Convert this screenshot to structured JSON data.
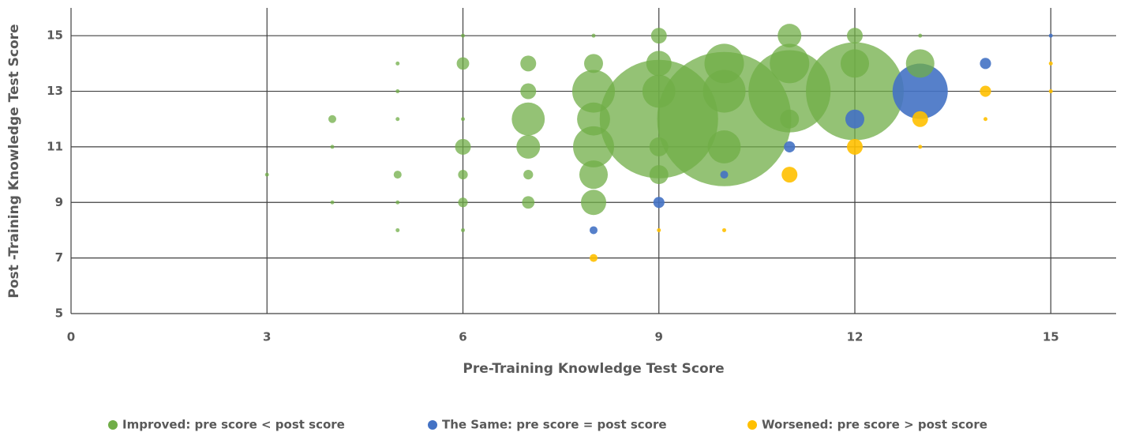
{
  "chart_data": {
    "type": "bubble",
    "xlabel": "Pre-Training Knowledge Test Score",
    "ylabel": "Post -Training Knowledge Test Score",
    "xlim": [
      0,
      16
    ],
    "xticks": [
      0,
      3,
      6,
      9,
      12,
      15
    ],
    "ylim": [
      5,
      16
    ],
    "yticks": [
      5,
      7,
      9,
      11,
      13,
      15
    ],
    "grid": true,
    "legend": "bottom",
    "series": [
      {
        "name": "Improved: pre score < post score",
        "color": "#70ad47",
        "x": [
          3,
          4,
          4,
          4,
          5,
          5,
          5,
          5,
          5,
          5,
          6,
          6,
          6,
          6,
          6,
          6,
          6,
          7,
          7,
          7,
          7,
          7,
          7,
          8,
          8,
          8,
          8,
          8,
          8,
          8,
          9,
          9,
          9,
          9,
          9,
          9,
          10,
          10,
          10,
          10,
          11,
          11,
          11,
          11,
          12,
          12,
          12,
          13,
          13
        ],
        "values": [
          10,
          12,
          11,
          9,
          14,
          13,
          12,
          10,
          9,
          8,
          15,
          14,
          12,
          11,
          10,
          9,
          8,
          14,
          13,
          12,
          11,
          10,
          9,
          15,
          14,
          13,
          12,
          11,
          10,
          9,
          15,
          14,
          13,
          12,
          11,
          10,
          14,
          13,
          12,
          11,
          15,
          14,
          13,
          12,
          15,
          14,
          13,
          15,
          14
        ],
        "size": [
          1,
          4,
          1,
          1,
          1,
          1,
          1,
          4,
          1,
          1,
          1,
          10,
          1,
          16,
          6,
          6,
          1,
          16,
          16,
          70,
          36,
          6,
          10,
          1,
          23,
          117,
          70,
          108,
          52,
          41,
          16,
          41,
          70,
          900,
          23,
          23,
          100,
          117,
          1156,
          70,
          36,
          100,
          433,
          23,
          16,
          52,
          615,
          1,
          52
        ]
      },
      {
        "name": "The Same: pre score = post score",
        "color": "#4472c4",
        "x": [
          8,
          9,
          10,
          11,
          12,
          13,
          14,
          15
        ],
        "values": [
          8,
          9,
          10,
          11,
          12,
          13,
          14,
          15
        ],
        "size": [
          4,
          8,
          4,
          8,
          23,
          196,
          8,
          1
        ]
      },
      {
        "name": "Worsened: pre score > post score",
        "color": "#ffc000",
        "x": [
          8,
          9,
          10,
          11,
          12,
          13,
          13,
          14,
          14,
          15,
          15
        ],
        "values": [
          7,
          8,
          8,
          10,
          11,
          12,
          11,
          13,
          12,
          14,
          13
        ],
        "size": [
          4,
          1,
          1,
          16,
          16,
          16,
          1,
          8,
          1,
          1,
          1
        ]
      }
    ]
  }
}
